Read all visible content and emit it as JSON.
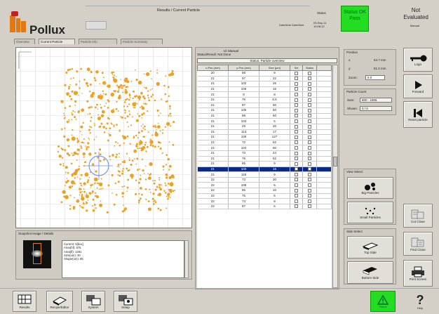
{
  "header": {
    "logo_text": "Pollux",
    "title": "Results / Current Particle",
    "status_label": "Status",
    "status_info": "Date/time  Date/time",
    "status_date": "03-Sep-11 10:08:12",
    "status_box": "Status OK Pass",
    "evaluation": "Not Evaluated",
    "evaluation_sub": "Manual"
  },
  "tabs": [
    "Overview",
    "Current Particle",
    "Particle Info",
    "Particle Summary"
  ],
  "image_panel": {
    "thumb_title": "Snapshot Image / Details",
    "details_lines": [
      "Current: 5[box]",
      "Area(hf): 575",
      "Area(lf): 1481",
      "Size(um): 40",
      "Shape(um): 85",
      "  "
    ]
  },
  "list_panel": {
    "hdr1": "Id: Manual",
    "hdr2": "Status/Result: Not Done",
    "status_text": "Status: Particle overview",
    "columns": [
      "x-Pos (mm)",
      "y-Pos (mm)",
      "Size (µm)",
      "Sel",
      "Status",
      ""
    ],
    "rows": [
      [
        "20",
        "88",
        "9"
      ],
      [
        "21",
        "97",
        "22"
      ],
      [
        "21",
        "102",
        "26"
      ],
      [
        "21",
        "106",
        "16"
      ],
      [
        "21",
        "8",
        "8"
      ],
      [
        "21",
        "76",
        "6.5"
      ],
      [
        "21",
        "87",
        "60"
      ],
      [
        "21",
        "106",
        "60"
      ],
      [
        "21",
        "88",
        "60"
      ],
      [
        "21",
        "103",
        "5"
      ],
      [
        "21",
        "29",
        "20"
      ],
      [
        "21",
        "113",
        "17"
      ],
      [
        "21",
        "100",
        "127"
      ],
      [
        "21",
        "72",
        "52"
      ],
      [
        "21",
        "103",
        "60"
      ],
      [
        "21",
        "73",
        "24"
      ],
      [
        "21",
        "78",
        "52"
      ],
      [
        "21",
        "85",
        "9"
      ],
      [
        "21",
        "100",
        "15"
      ],
      [
        "21",
        "118",
        "9"
      ],
      [
        "22",
        "73",
        "30"
      ],
      [
        "22",
        "108",
        "6"
      ],
      [
        "22",
        "85",
        "10"
      ],
      [
        "22",
        "75",
        "6"
      ],
      [
        "22",
        "74",
        "8"
      ],
      [
        "22",
        "87",
        "6"
      ]
    ],
    "selected_row": 18
  },
  "position": {
    "title": "Position",
    "x_label": "x:",
    "x_val": "54.7 mm",
    "y_label": "y:",
    "y_val": "51.0 mm",
    "zoom_label": "Zoom:",
    "zoom_val": "8.0"
  },
  "particle_count": {
    "title": "Particle Count",
    "sum_label": "Sum:",
    "sum_val": "800 - 1906",
    "shown_label": "Shown:",
    "shown_val": "0 / 0"
  },
  "view_select": {
    "title": "View Select",
    "big_label": "Big Particles",
    "small_label": "Small Particles"
  },
  "side_select": {
    "title": "Side Select",
    "top_label": "Top Side",
    "bottom_label": "Bottom Side"
  },
  "right_buttons": {
    "logo": "Logo",
    "next": "Forward",
    "reset": "Reset particle",
    "cut": "Cut Close",
    "find": "Find Close",
    "print": "Print Screen"
  },
  "bottom_buttons": [
    "Results",
    "Recipe/Editor",
    "System",
    "Setup"
  ],
  "warn_label": "Status",
  "help_label": "Help"
}
